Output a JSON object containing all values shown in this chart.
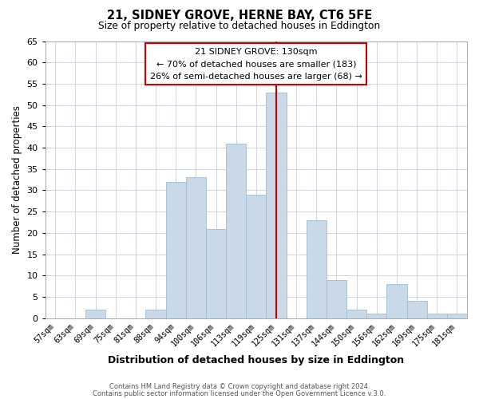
{
  "title": "21, SIDNEY GROVE, HERNE BAY, CT6 5FE",
  "subtitle": "Size of property relative to detached houses in Eddington",
  "xlabel": "Distribution of detached houses by size in Eddington",
  "ylabel": "Number of detached properties",
  "categories": [
    "57sqm",
    "63sqm",
    "69sqm",
    "75sqm",
    "81sqm",
    "88sqm",
    "94sqm",
    "100sqm",
    "106sqm",
    "113sqm",
    "119sqm",
    "125sqm",
    "131sqm",
    "137sqm",
    "144sqm",
    "150sqm",
    "156sqm",
    "162sqm",
    "169sqm",
    "175sqm",
    "181sqm"
  ],
  "values": [
    0,
    0,
    2,
    0,
    0,
    2,
    32,
    33,
    21,
    41,
    29,
    53,
    0,
    23,
    9,
    2,
    1,
    8,
    4,
    1,
    1
  ],
  "bar_color": "#c9d9e8",
  "bar_edge_color": "#a0bcd0",
  "red_line_index": 11,
  "highlight_line_color": "#cc0000",
  "ylim": [
    0,
    65
  ],
  "annotation_title": "21 SIDNEY GROVE: 130sqm",
  "annotation_line1": "← 70% of detached houses are smaller (183)",
  "annotation_line2": "26% of semi-detached houses are larger (68) →",
  "annotation_box_color": "#ffffff",
  "annotation_box_edge": "#cc0000",
  "footer1": "Contains HM Land Registry data © Crown copyright and database right 2024.",
  "footer2": "Contains public sector information licensed under the Open Government Licence v.3.0.",
  "background_color": "#ffffff",
  "grid_color": "#c8d0dc"
}
